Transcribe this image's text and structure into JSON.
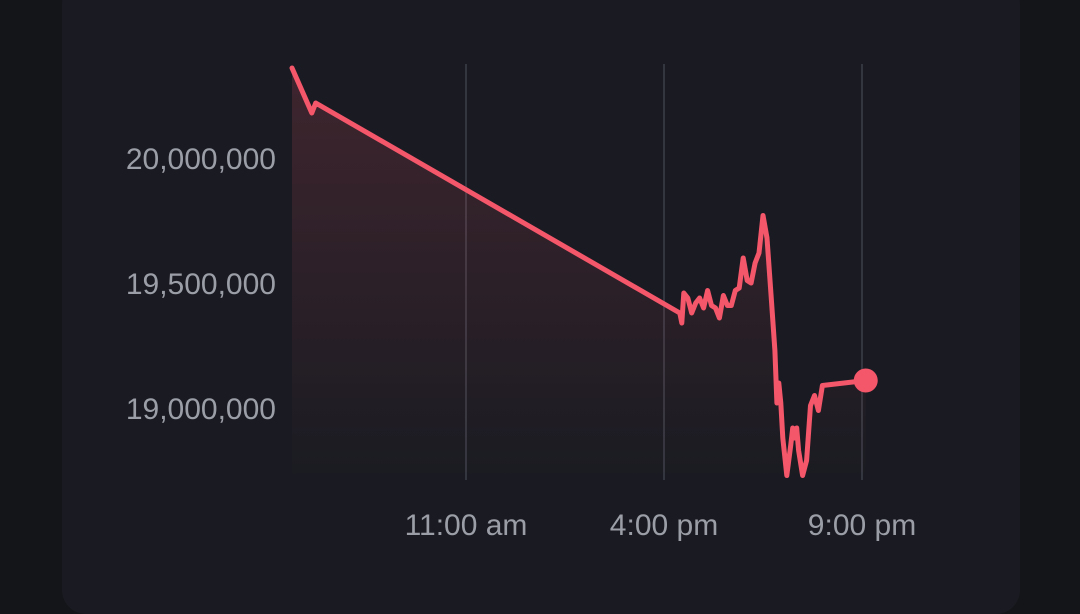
{
  "colors": {
    "background": "#141519",
    "card": "#1a1b22",
    "line": "#f4566a",
    "grid": "#34363f",
    "label": "#9c9ea7"
  },
  "chart_data": {
    "type": "area",
    "title": "",
    "xlabel": "",
    "ylabel": "",
    "grid": "vertical lines at x ticks",
    "y_ticks": [
      "20,000,000",
      "19,500,000",
      "19,000,000"
    ],
    "y_tick_values": [
      20000000,
      19500000,
      19000000
    ],
    "x_ticks": [
      "11:00 am",
      "4:00 pm",
      "9:00 pm"
    ],
    "x_tick_values": [
      11,
      16,
      21
    ],
    "xlim": [
      6.6,
      22.1
    ],
    "ylim": [
      18720000,
      20450000
    ],
    "series": [
      {
        "values": [
          [
            6.6,
            20360000
          ],
          [
            7.1,
            20180000
          ],
          [
            7.2,
            20220000
          ],
          [
            16.4,
            19380000
          ],
          [
            16.45,
            19340000
          ],
          [
            16.5,
            19460000
          ],
          [
            16.6,
            19440000
          ],
          [
            16.7,
            19380000
          ],
          [
            16.8,
            19420000
          ],
          [
            16.9,
            19440000
          ],
          [
            17.0,
            19400000
          ],
          [
            17.1,
            19470000
          ],
          [
            17.2,
            19410000
          ],
          [
            17.3,
            19400000
          ],
          [
            17.4,
            19360000
          ],
          [
            17.5,
            19450000
          ],
          [
            17.6,
            19410000
          ],
          [
            17.7,
            19410000
          ],
          [
            17.8,
            19470000
          ],
          [
            17.9,
            19480000
          ],
          [
            18.0,
            19600000
          ],
          [
            18.1,
            19510000
          ],
          [
            18.2,
            19500000
          ],
          [
            18.3,
            19580000
          ],
          [
            18.4,
            19620000
          ],
          [
            18.5,
            19770000
          ],
          [
            18.6,
            19680000
          ],
          [
            18.7,
            19460000
          ],
          [
            18.8,
            19230000
          ],
          [
            18.85,
            19020000
          ],
          [
            18.9,
            19100000
          ],
          [
            18.95,
            19020000
          ],
          [
            19.0,
            18880000
          ],
          [
            19.1,
            18730000
          ],
          [
            19.2,
            18850000
          ],
          [
            19.25,
            18920000
          ],
          [
            19.3,
            18880000
          ],
          [
            19.35,
            18920000
          ],
          [
            19.4,
            18830000
          ],
          [
            19.5,
            18730000
          ],
          [
            19.6,
            18790000
          ],
          [
            19.7,
            19010000
          ],
          [
            19.8,
            19050000
          ],
          [
            19.9,
            18990000
          ],
          [
            20.0,
            19090000
          ]
        ]
      }
    ],
    "current_point": [
      21.1,
      19110000
    ]
  }
}
